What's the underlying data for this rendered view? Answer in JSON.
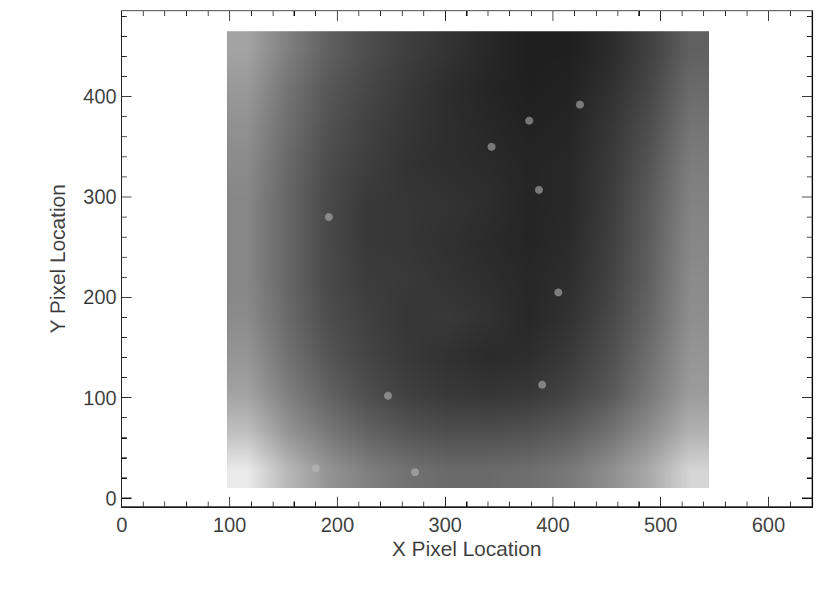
{
  "chart_data": {
    "type": "heatmap",
    "x_label": "X Pixel Location",
    "y_label": "Y Pixel Location",
    "xlim": [
      0,
      640
    ],
    "ylim": [
      -8,
      485
    ],
    "xticks": [
      0,
      100,
      200,
      300,
      400,
      500,
      600
    ],
    "yticks": [
      0,
      100,
      200,
      300,
      400
    ],
    "x": [
      116,
      153,
      190,
      228,
      265,
      302,
      340,
      377,
      414,
      452,
      489,
      526
    ],
    "y": [
      29,
      67,
      105,
      143,
      181,
      219,
      256,
      294,
      332,
      370,
      408,
      446
    ],
    "cells": [
      [
        225,
        190,
        165,
        150,
        140,
        135,
        135,
        138,
        145,
        160,
        180,
        210
      ],
      [
        195,
        165,
        145,
        130,
        120,
        115,
        115,
        118,
        125,
        140,
        160,
        185
      ],
      [
        175,
        150,
        130,
        115,
        105,
        100,
        98,
        100,
        108,
        122,
        145,
        170
      ],
      [
        165,
        140,
        120,
        108,
        100,
        95,
        90,
        92,
        100,
        115,
        138,
        165
      ],
      [
        158,
        135,
        115,
        105,
        98,
        100,
        95,
        88,
        95,
        110,
        132,
        160
      ],
      [
        155,
        132,
        112,
        102,
        100,
        96,
        92,
        88,
        92,
        106,
        128,
        158
      ],
      [
        155,
        132,
        112,
        100,
        98,
        94,
        90,
        86,
        90,
        104,
        126,
        155
      ],
      [
        155,
        132,
        112,
        100,
        98,
        96,
        92,
        86,
        88,
        102,
        124,
        152
      ],
      [
        158,
        134,
        114,
        104,
        96,
        92,
        90,
        86,
        88,
        100,
        120,
        148
      ],
      [
        162,
        138,
        118,
        106,
        98,
        92,
        88,
        84,
        86,
        98,
        115,
        142
      ],
      [
        168,
        142,
        122,
        110,
        100,
        92,
        86,
        82,
        84,
        94,
        110,
        135
      ],
      [
        175,
        150,
        128,
        114,
        104,
        96,
        88,
        82,
        82,
        90,
        106,
        128
      ]
    ],
    "zlim": [
      60,
      240
    ],
    "spots": {
      "x": [
        343,
        387,
        425,
        378,
        192,
        247,
        390,
        180,
        272,
        405
      ],
      "y": [
        350,
        307,
        392,
        376,
        280,
        102,
        113,
        30,
        26,
        205
      ]
    },
    "grid": false
  }
}
